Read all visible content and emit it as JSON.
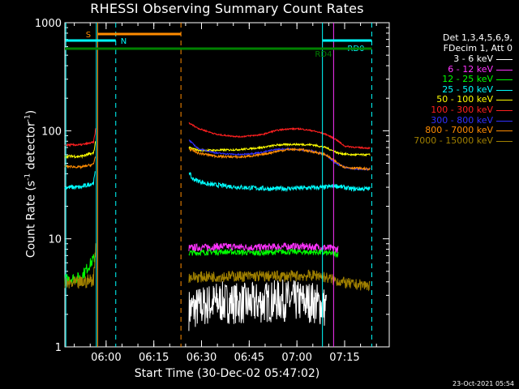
{
  "title": "RHESSI Observing Summary Count Rates",
  "xlabel": "Start Time (30-Dec-02 05:47:02)",
  "ylabel_main": "Count Rate (s",
  "ylabel_sup": "-1",
  "ylabel_end": " detector",
  "ylabel_sup2": "-1",
  "ylabel_close": ")",
  "legend_header": [
    "Det 1,3,4,5,6,9,",
    "FDecim 1, Att 0"
  ],
  "timestamp": "23-Oct-2021 05:54",
  "chart_data": {
    "type": "line",
    "title": "RHESSI Observing Summary Count Rates",
    "xlabel": "Start Time (30-Dec-02 05:47:02)",
    "ylabel": "Count Rate (s^-1 detector^-1)",
    "yscale": "log",
    "ylim": [
      1,
      1000
    ],
    "xlim_minutes": [
      0,
      102
    ],
    "xticks": [
      {
        "label": "06:00",
        "minute": 12.97
      },
      {
        "label": "06:15",
        "minute": 27.97
      },
      {
        "label": "06:30",
        "minute": 42.97
      },
      {
        "label": "06:45",
        "minute": 57.97
      },
      {
        "label": "07:00",
        "minute": 72.97
      },
      {
        "label": "07:15",
        "minute": 87.97
      }
    ],
    "yticks": [
      {
        "label": "1",
        "value": 1
      },
      {
        "label": "10",
        "value": 10
      },
      {
        "label": "100",
        "value": 100
      },
      {
        "label": "1000",
        "value": 1000
      }
    ],
    "bands": [
      {
        "name": "3 - 6 keV",
        "color": "#ffffff",
        "segments": [
          {
            "x": [
              39.0,
              48,
              58,
              68,
              78,
              82.3
            ],
            "y": [
              2.2,
              2.6,
              2.5,
              2.7,
              2.6,
              2.3
            ],
            "noise": 0.45
          }
        ]
      },
      {
        "name": "6 - 12 keV",
        "color": "#ff33ff",
        "segments": [
          {
            "x": [
              39.0,
              50,
              60,
              70,
              80,
              86.0
            ],
            "y": [
              8.2,
              8.5,
              8.3,
              8.5,
              8.4,
              8.0
            ],
            "noise": 0.08
          }
        ]
      },
      {
        "name": "12 - 25 keV",
        "color": "#00ff00",
        "segments": [
          {
            "x": [
              0,
              5,
              9.5
            ],
            "y": [
              4.2,
              4.4,
              6.8
            ],
            "noise": 0.12
          },
          {
            "x": [
              39.0,
              50,
              60,
              70,
              80,
              86.0
            ],
            "y": [
              7.4,
              7.6,
              7.4,
              7.6,
              7.5,
              7.2
            ],
            "noise": 0.06
          }
        ]
      },
      {
        "name": "25 - 50 keV",
        "color": "#00ffff",
        "segments": [
          {
            "x": [
              0,
              5,
              9.0,
              9.6
            ],
            "y": [
              30,
              30,
              33,
              42
            ],
            "noise": 0.05
          },
          {
            "x": [
              39.0,
              40,
              45,
              55,
              65,
              75,
              82,
              85,
              90,
              96
            ],
            "y": [
              42,
              36,
              32,
              30,
              29,
              29.5,
              30,
              31,
              29,
              29
            ],
            "noise": 0.05
          }
        ]
      },
      {
        "name": "50 - 100 keV",
        "color": "#ffff00",
        "segments": [
          {
            "x": [
              0,
              5,
              9.0,
              9.8
            ],
            "y": [
              58,
              58,
              62,
              84
            ],
            "noise": 0.03
          },
          {
            "x": [
              39.0,
              42,
              48,
              55,
              62,
              67,
              72,
              78,
              82,
              86,
              90,
              96
            ],
            "y": [
              70,
              66,
              66,
              67,
              70,
              74,
              75,
              74,
              70,
              62,
              60,
              60
            ],
            "noise": 0.02
          }
        ]
      },
      {
        "name": "100 - 300 keV",
        "color": "#ff2020",
        "segments": [
          {
            "x": [
              0,
              5,
              9.0,
              9.8
            ],
            "y": [
              74,
              74,
              78,
              108
            ],
            "noise": 0.02
          },
          {
            "x": [
              39.0,
              42,
              48,
              55,
              62,
              66,
              70,
              74,
              78,
              82,
              85,
              88,
              92,
              96
            ],
            "y": [
              118,
              105,
              92,
              88,
              92,
              100,
              104,
              104,
              100,
              93,
              84,
              72,
              70,
              69
            ],
            "noise": 0.015
          }
        ]
      },
      {
        "name": "300 - 800 keV",
        "color": "#3030ff",
        "segments": [
          {
            "x": [
              39.0,
              42,
              48,
              55,
              62,
              66,
              70,
              74,
              78,
              82,
              85,
              88,
              92,
              96
            ],
            "y": [
              82,
              68,
              62,
              60,
              63,
              67,
              68,
              67,
              65,
              60,
              50,
              46,
              44,
              44
            ],
            "noise": 0.015
          }
        ]
      },
      {
        "name": "800 - 7000 keV",
        "color": "#ff8c00",
        "segments": [
          {
            "x": [
              0,
              5,
              9.0,
              9.7
            ],
            "y": [
              47,
              46,
              49,
              60
            ],
            "noise": 0.025
          },
          {
            "x": [
              39.0,
              42,
              48,
              55,
              62,
              66,
              70,
              74,
              78,
              82,
              85,
              88,
              92,
              96
            ],
            "y": [
              68,
              62,
              58,
              57,
              60,
              64,
              67,
              67,
              64,
              60,
              52,
              46,
              45,
              44
            ],
            "noise": 0.025
          }
        ]
      },
      {
        "name": "7000 - 15000 keV",
        "color": "#a08000",
        "segments": [
          {
            "x": [
              0,
              5,
              9.0,
              9.8
            ],
            "y": [
              3.8,
              3.9,
              4.2,
              9.5
            ],
            "noise": 0.15
          },
          {
            "x": [
              39.0,
              50,
              60,
              70,
              80,
              84,
              90,
              96
            ],
            "y": [
              4.4,
              4.5,
              4.5,
              4.5,
              4.6,
              4.2,
              3.8,
              3.7
            ],
            "noise": 0.12
          }
        ]
      }
    ],
    "flags": [
      {
        "label": "S",
        "color": "#ff8c00",
        "x_start": 0.2,
        "x_end": 10.3,
        "level": 0.945
      },
      {
        "label": "",
        "color": "#ff8c00",
        "x_start": 10.3,
        "x_end": 36.5,
        "level": 0.965
      },
      {
        "label": "N",
        "color": "#00ffff",
        "x_start": 0.2,
        "x_end": 16.0,
        "level": 0.945
      },
      {
        "label": "RD0",
        "color": "#00ffff",
        "x_start": 81.0,
        "x_end": 96.5,
        "level": 0.945
      },
      {
        "label": "RD4",
        "color": "#008000",
        "x_start": 0,
        "x_end": 96.5,
        "level": 0.92
      }
    ],
    "vlines": [
      {
        "minute": 0.3,
        "color": "#00ffff",
        "style": "solid"
      },
      {
        "minute": 9.9,
        "color": "#00ffff",
        "style": "solid"
      },
      {
        "minute": 10.3,
        "color": "#ff8c00",
        "style": "solid"
      },
      {
        "minute": 16.0,
        "color": "#00ffff",
        "style": "dashed"
      },
      {
        "minute": 36.5,
        "color": "#ff8c00",
        "style": "dashed"
      },
      {
        "minute": 81.0,
        "color": "#00ffff",
        "style": "solid"
      },
      {
        "minute": 84.5,
        "color": "#ff33ff",
        "style": "solid"
      },
      {
        "minute": 96.5,
        "color": "#00ffff",
        "style": "dashed"
      }
    ]
  }
}
